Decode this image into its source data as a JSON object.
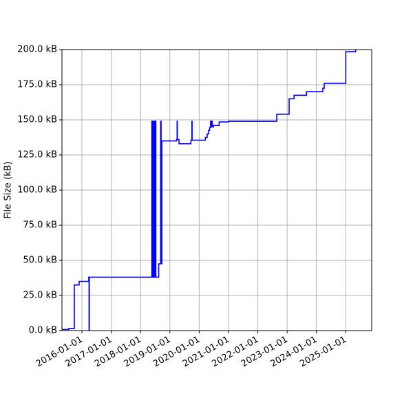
{
  "chart_data": {
    "type": "line",
    "y_label": "File Size (kB)",
    "x": [
      "2015-05-01",
      "2015-07-21",
      "2015-09-28",
      "2015-11-27",
      "2016-03-26",
      "2016-03-30",
      "2016-04-02",
      "2018-05-21",
      "2018-05-30",
      "2018-06-08",
      "2018-06-20",
      "2018-06-28",
      "2018-07-10",
      "2018-08-15",
      "2018-09-08",
      "2018-09-14",
      "2018-09-23",
      "2019-03-25",
      "2019-04-01",
      "2019-04-04",
      "2019-04-25",
      "2019-09-20",
      "2019-10-02",
      "2019-10-05",
      "2020-03-18",
      "2020-04-10",
      "2020-04-28",
      "2020-05-10",
      "2020-05-22",
      "2020-05-28",
      "2020-06-09",
      "2020-06-12",
      "2020-06-28",
      "2020-09-06",
      "2021-01-01",
      "2022-08-25",
      "2023-01-26",
      "2023-03-29",
      "2023-08-30",
      "2024-03-21",
      "2024-04-07",
      "2025-01-01",
      "2025-05-04"
    ],
    "series": [
      {
        "color": "#0000ff",
        "values": [
          0.8,
          1.5,
          32.5,
          35,
          38,
          0,
          38,
          149,
          38,
          149,
          38,
          149,
          38,
          47.5,
          149,
          47.5,
          135,
          136,
          149,
          136,
          133,
          135.5,
          149,
          135.5,
          137.5,
          140,
          142.5,
          144.5,
          149,
          145,
          149,
          145,
          146,
          148.5,
          149,
          154,
          165,
          167.5,
          170,
          172.5,
          176,
          198.5,
          200
        ]
      }
    ],
    "xlim": [
      "2015-04-27",
      "2025-11-20"
    ],
    "xticks": [
      "2016-01-01",
      "2017-01-01",
      "2018-01-01",
      "2019-01-01",
      "2020-01-01",
      "2021-01-01",
      "2022-01-01",
      "2023-01-01",
      "2024-01-01",
      "2025-01-01"
    ],
    "ylim": [
      0,
      200
    ],
    "yticks": [
      {
        "value": 0,
        "label": "0.0 kB"
      },
      {
        "value": 25,
        "label": "25.0 kB"
      },
      {
        "value": 50,
        "label": "50.0 kB"
      },
      {
        "value": 75,
        "label": "75.0 kB"
      },
      {
        "value": 100,
        "label": "100.0 kB"
      },
      {
        "value": 125,
        "label": "125.0 kB"
      },
      {
        "value": 150,
        "label": "150.0 kB"
      },
      {
        "value": 175,
        "label": "175.0 kB"
      },
      {
        "value": 200,
        "label": "200.0 kB"
      }
    ],
    "grid": true
  }
}
